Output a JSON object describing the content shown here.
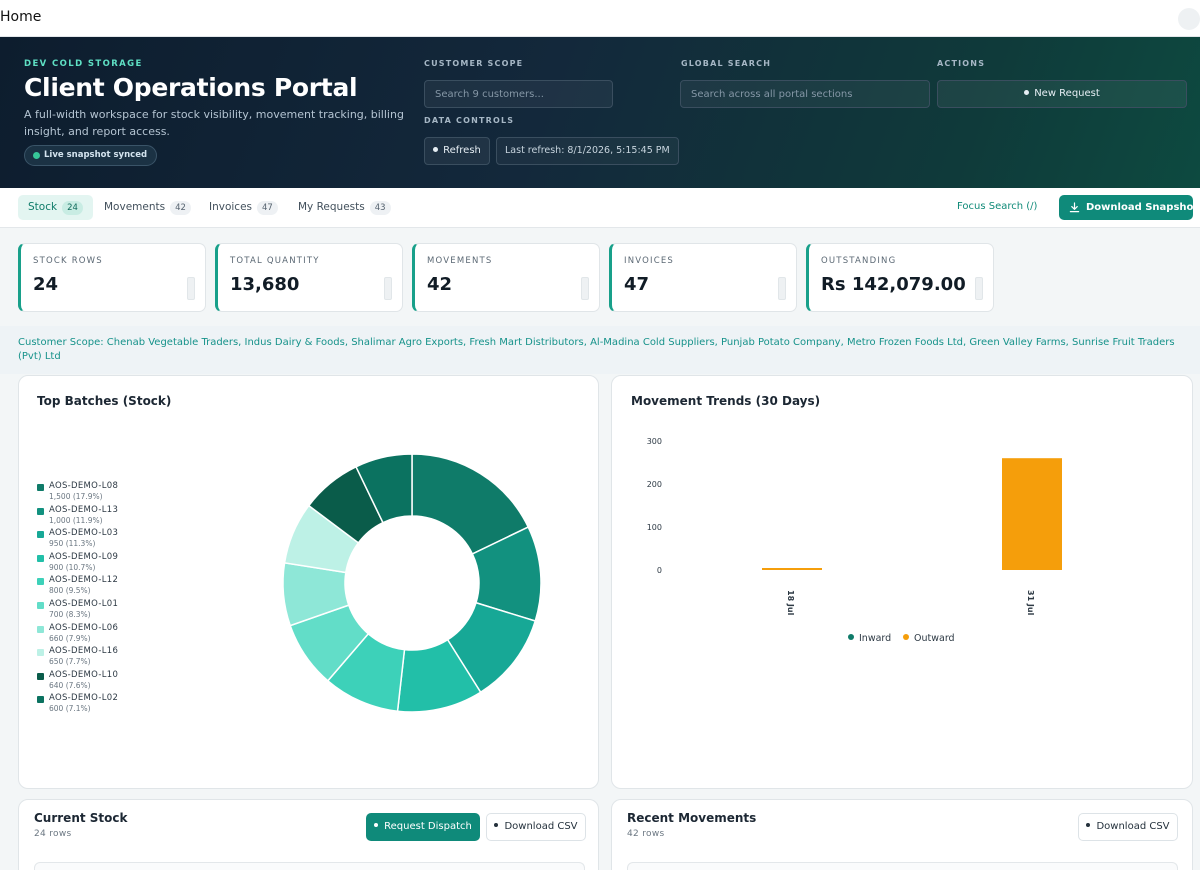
{
  "topbar": {
    "title": "Home"
  },
  "hero": {
    "eyebrow": "DEV COLD STORAGE",
    "title": "Client Operations Portal",
    "description": "A full-width workspace for stock visibility, movement tracking, billing insight, and report access.",
    "live_badge": "Live snapshot synced",
    "customer_scope_label": "CUSTOMER SCOPE",
    "customer_scope_placeholder": "Search 9 customers...",
    "global_search_label": "GLOBAL SEARCH",
    "global_search_placeholder": "Search across all portal sections",
    "actions_label": "ACTIONS",
    "new_request": "New Request",
    "data_controls_label": "DATA CONTROLS",
    "refresh": "Refresh",
    "last_refresh": "Last refresh: 8/1/2026, 5:15:45 PM"
  },
  "tabs": [
    {
      "label": "Stock",
      "count": "24",
      "active": true
    },
    {
      "label": "Movements",
      "count": "42",
      "active": false
    },
    {
      "label": "Invoices",
      "count": "47",
      "active": false
    },
    {
      "label": "My Requests",
      "count": "43",
      "active": false
    }
  ],
  "toolbar": {
    "focus_search": "Focus Search (/)",
    "download_snapshot": "Download Snapshot"
  },
  "kpis": [
    {
      "label": "STOCK ROWS",
      "value": "24"
    },
    {
      "label": "TOTAL QUANTITY",
      "value": "13,680"
    },
    {
      "label": "MOVEMENTS",
      "value": "42"
    },
    {
      "label": "INVOICES",
      "value": "47"
    },
    {
      "label": "OUTSTANDING",
      "value": "Rs 142,079.00"
    }
  ],
  "scope_text": "Customer Scope: Chenab Vegetable Traders, Indus Dairy & Foods, Shalimar Agro Exports, Fresh Mart Distributors, Al-Madina Cold Suppliers, Punjab Potato Company, Metro Frozen Foods Ltd, Green Valley Farms, Sunrise Fruit Traders (Pvt) Ltd",
  "charts": {
    "top_batches_title": "Top Batches (Stock)",
    "movement_title": "Movement Trends (30 Days)"
  },
  "chart_data": [
    {
      "type": "pie",
      "title": "Top Batches (Stock)",
      "categories": [
        "AOS-DEMO-L08",
        "AOS-DEMO-L13",
        "AOS-DEMO-L03",
        "AOS-DEMO-L09",
        "AOS-DEMO-L12",
        "AOS-DEMO-L01",
        "AOS-DEMO-L06",
        "AOS-DEMO-L16",
        "AOS-DEMO-L10",
        "AOS-DEMO-L02"
      ],
      "values": [
        1500,
        1000,
        950,
        900,
        800,
        700,
        660,
        650,
        640,
        600
      ],
      "value_labels": [
        "1,500 (17.9%)",
        "1,000 (11.9%)",
        "950 (11.3%)",
        "900 (10.7%)",
        "800 (9.5%)",
        "700 (8.3%)",
        "660 (7.9%)",
        "650 (7.7%)",
        "640 (7.6%)",
        "600 (7.1%)"
      ],
      "colors": [
        "#0f7b69",
        "#12917f",
        "#17a896",
        "#22bfa8",
        "#3dd1b9",
        "#62ddc8",
        "#8ee7d7",
        "#bdf1e6",
        "#0a5c4a",
        "#0b7260"
      ],
      "legend": "left"
    },
    {
      "type": "bar",
      "title": "Movement Trends (30 Days)",
      "categories": [
        "18 Jul",
        "31 Jul"
      ],
      "series": [
        {
          "name": "Inward",
          "color": "#0f7b69",
          "values": [
            0,
            0
          ]
        },
        {
          "name": "Outward",
          "color": "#f59e0b",
          "values": [
            2,
            260
          ]
        }
      ],
      "yticks": [
        0,
        100,
        200,
        300
      ],
      "ylim": [
        0,
        300
      ],
      "legend": "bottom"
    }
  ],
  "current_stock": {
    "title": "Current Stock",
    "count": "24 rows",
    "request_dispatch": "Request Dispatch",
    "download_csv": "Download CSV"
  },
  "recent_movements": {
    "title": "Recent Movements",
    "count": "42 rows",
    "download_csv": "Download CSV"
  }
}
